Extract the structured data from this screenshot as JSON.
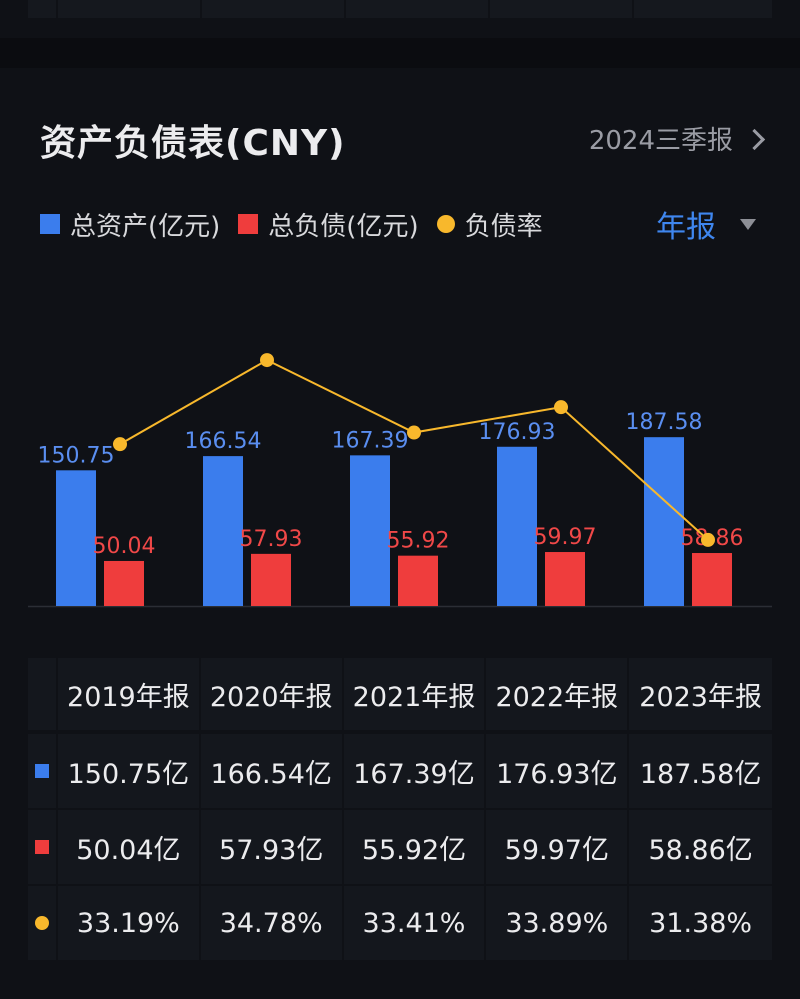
{
  "header": {
    "title": "资产负债表(CNY)",
    "report_link": "2024三季报"
  },
  "legend": [
    {
      "label": "总资产(亿元)",
      "color": "#3b7ded",
      "shape": "square"
    },
    {
      "label": "总负债(亿元)",
      "color": "#ef3d3d",
      "shape": "square"
    },
    {
      "label": "负债率",
      "color": "#f8b82c",
      "shape": "dot"
    }
  ],
  "period_selector": {
    "label": "年报"
  },
  "colors": {
    "assets": "#3b7ded",
    "liabilities": "#ef3d3d",
    "ratio": "#f8b82c",
    "asset_label": "#5a8ef0",
    "liability_label": "#f04848"
  },
  "chart_data": {
    "type": "bar",
    "categories": [
      "2019年报",
      "2020年报",
      "2021年报",
      "2022年报",
      "2023年报"
    ],
    "series": [
      {
        "name": "总资产(亿元)",
        "values": [
          150.75,
          166.54,
          167.39,
          176.93,
          187.58
        ]
      },
      {
        "name": "总负债(亿元)",
        "values": [
          50.04,
          57.93,
          55.92,
          59.97,
          58.86
        ]
      },
      {
        "name": "负债率",
        "type": "line",
        "values": [
          33.19,
          34.78,
          33.41,
          33.89,
          31.38
        ]
      }
    ],
    "ylim": [
      0,
      200
    ],
    "ratio_ylim": [
      31.0,
      35.5
    ]
  },
  "table": {
    "headers": [
      "2019年报",
      "2020年报",
      "2021年报",
      "2022年报",
      "2023年报"
    ],
    "rows": [
      {
        "marker": "square",
        "color": "#3b7ded",
        "cells": [
          "150.75亿",
          "166.54亿",
          "167.39亿",
          "176.93亿",
          "187.58亿"
        ]
      },
      {
        "marker": "square",
        "color": "#ef3d3d",
        "cells": [
          "50.04亿",
          "57.93亿",
          "55.92亿",
          "59.97亿",
          "58.86亿"
        ]
      },
      {
        "marker": "dot",
        "color": "#f8b82c",
        "cells": [
          "33.19%",
          "34.78%",
          "33.41%",
          "33.89%",
          "31.38%"
        ]
      }
    ]
  }
}
